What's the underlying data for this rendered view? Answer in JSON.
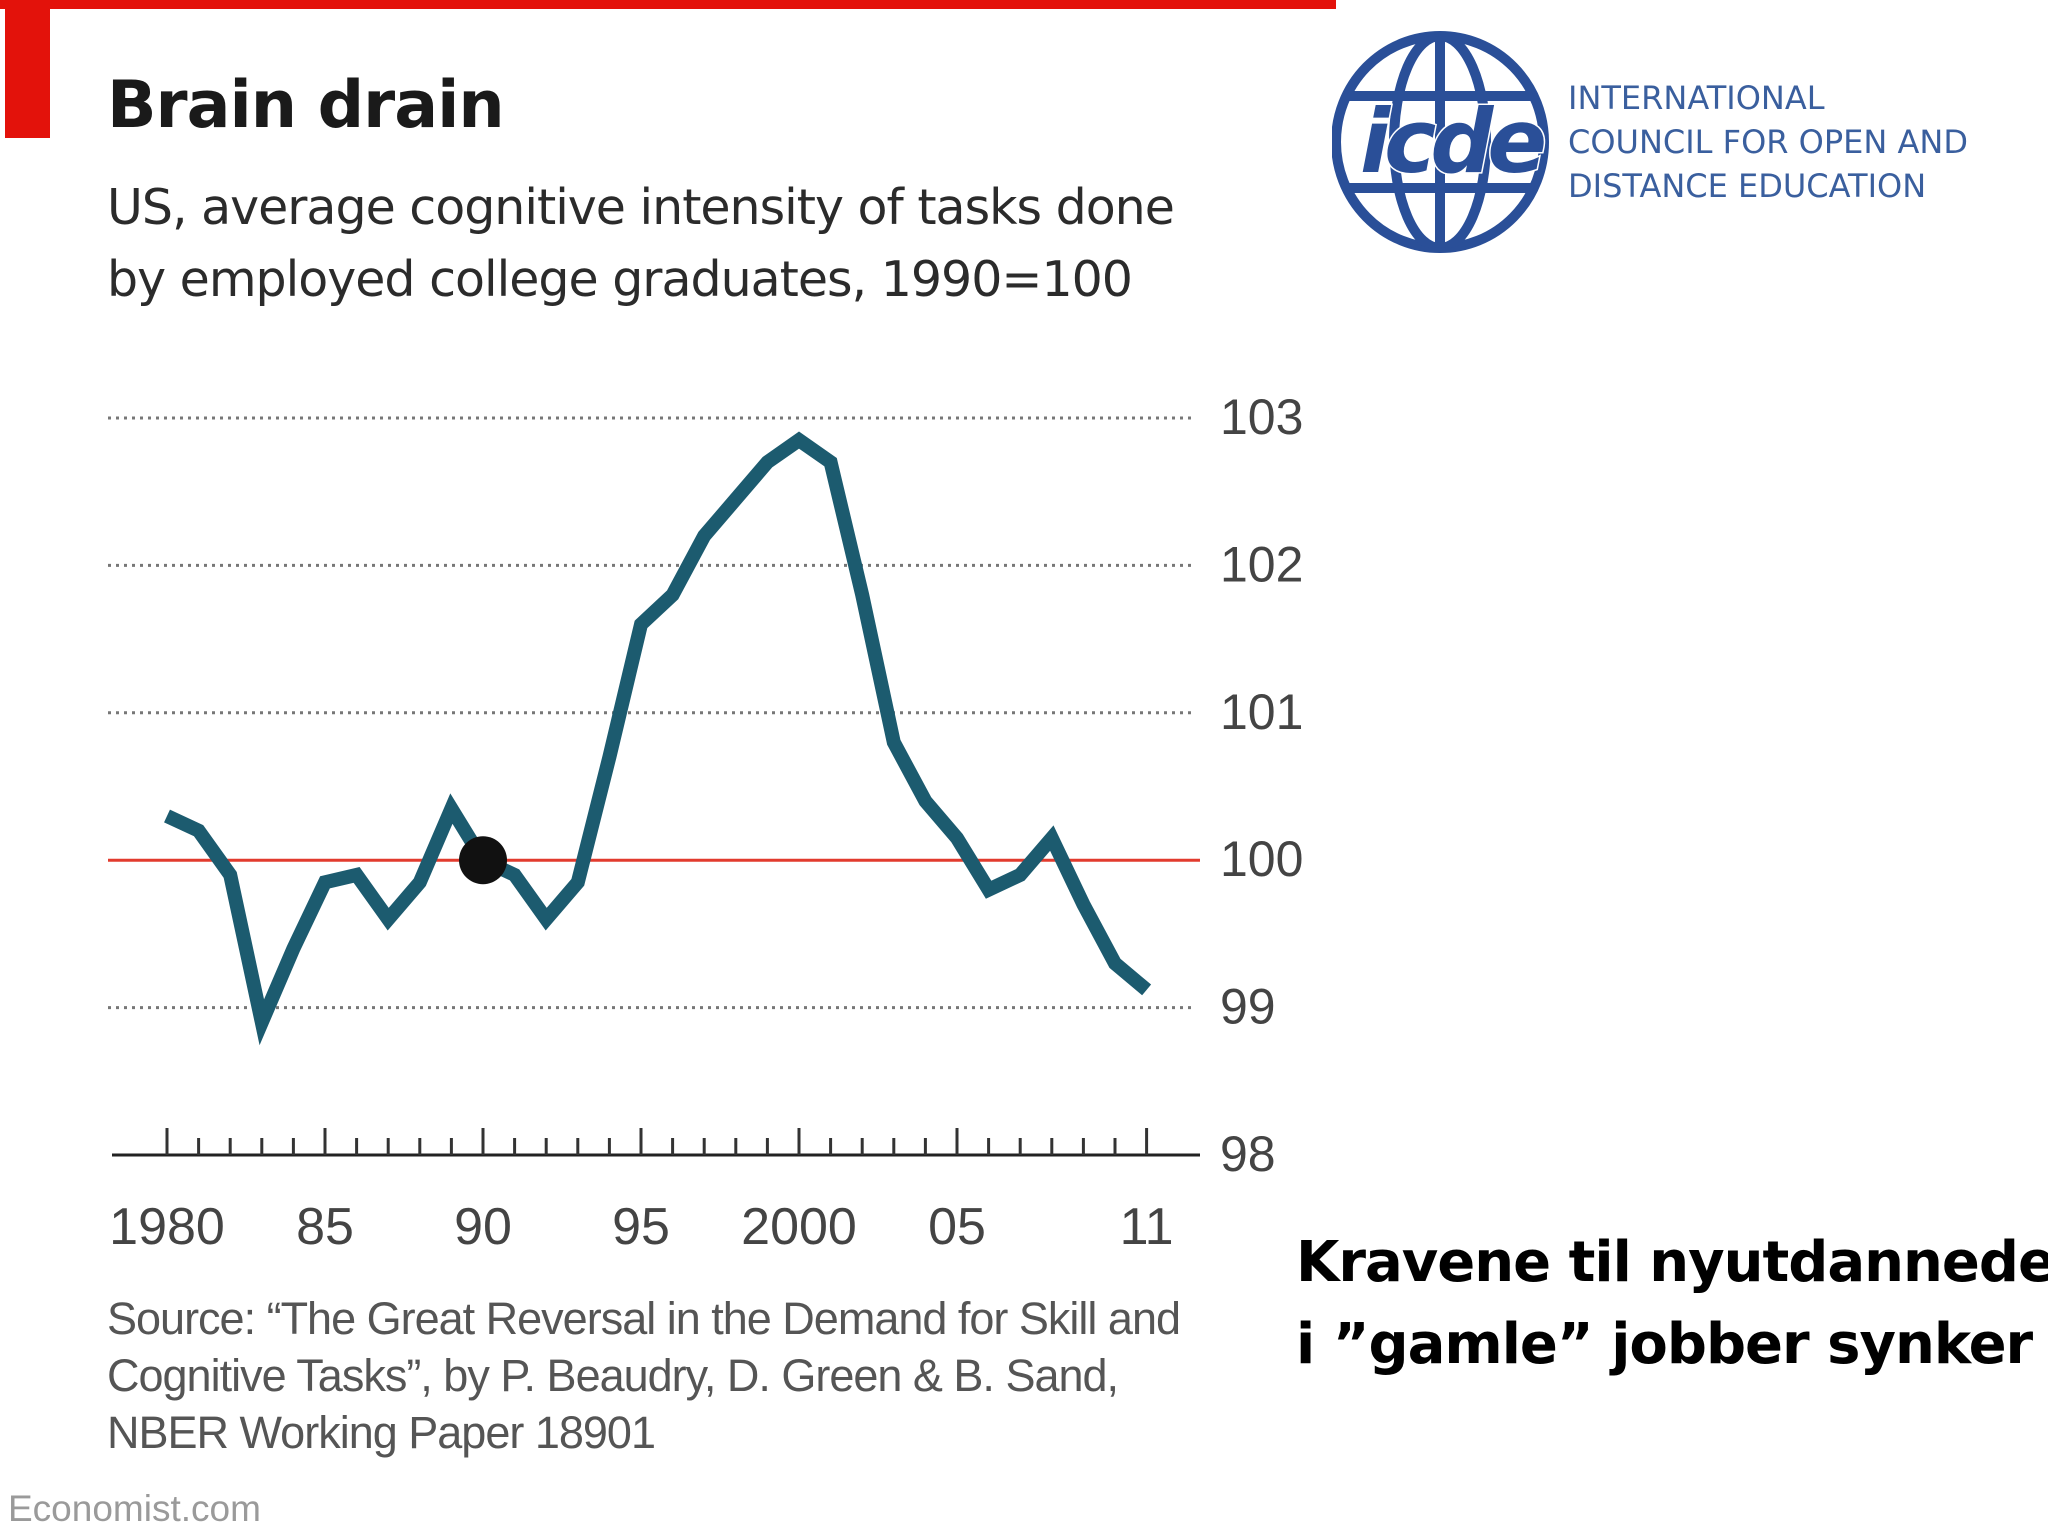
{
  "header": {
    "title": "Brain drain",
    "subtitle_lines": [
      "US, average cognitive intensity of tasks done",
      "by employed college graduates, 1990=100"
    ]
  },
  "chart_data": {
    "type": "line",
    "title": "Brain drain",
    "subtitle": "US, average cognitive intensity of tasks done by employed college graduates, 1990=100",
    "x": [
      1980,
      1981,
      1982,
      1983,
      1984,
      1985,
      1986,
      1987,
      1988,
      1989,
      1990,
      1991,
      1992,
      1993,
      1994,
      1995,
      1996,
      1997,
      1998,
      1999,
      2000,
      2001,
      2002,
      2003,
      2004,
      2005,
      2006,
      2007,
      2008,
      2009,
      2010,
      2011
    ],
    "series": [
      {
        "values": [
          100.3,
          100.2,
          99.9,
          98.9,
          99.4,
          99.85,
          99.9,
          99.6,
          99.85,
          100.35,
          100.0,
          99.9,
          99.6,
          99.85,
          100.7,
          101.6,
          101.8,
          102.2,
          102.45,
          102.7,
          102.85,
          102.7,
          101.8,
          100.8,
          100.4,
          100.15,
          99.8,
          99.9,
          100.15,
          99.7,
          99.3,
          99.12
        ]
      }
    ],
    "highlight": {
      "x": 1990,
      "y": 100
    },
    "reference_line": 100,
    "xticks": [
      1980,
      1985,
      1990,
      1995,
      2000,
      2005,
      2011
    ],
    "xtick_labels": [
      "1980",
      "85",
      "90",
      "95",
      "2000",
      "05",
      "11"
    ],
    "yticks": [
      98,
      99,
      100,
      101,
      102,
      103
    ],
    "ytick_labels": [
      "98",
      "99",
      "100",
      "101",
      "102",
      "103"
    ],
    "ylim": [
      98,
      103
    ],
    "xlim": [
      1979,
      2012
    ],
    "grid": true,
    "y_axis_side": "right"
  },
  "source_lines": [
    "Source: “The Great Reversal in the Demand for Skill and",
    "Cognitive Tasks”, by P. Beaudry, D. Green & B. Sand,",
    "NBER Working Paper 18901"
  ],
  "credit": "Economist.com",
  "logo": {
    "text": "icde",
    "org_lines": [
      "INTERNATIONAL",
      "COUNCIL FOR OPEN AND",
      "DISTANCE EDUCATION"
    ]
  },
  "caption_lines": [
    "Kravene til nyutdannede",
    "i ”gamle” jobber synker"
  ],
  "colors": {
    "line": "#1c5b6f",
    "reference": "#e23b2e",
    "accent": "#e3120b",
    "logo_blue": "#2a4f98"
  }
}
